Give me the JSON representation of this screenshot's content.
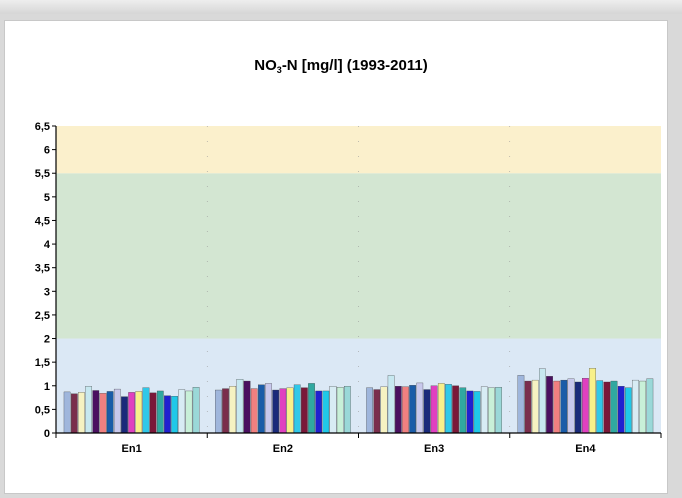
{
  "chart_data": {
    "type": "bar",
    "title_main": "NO",
    "title_sub": "3",
    "title_rest": "-N [mg/l] (1993-2011)",
    "categories": [
      "En1",
      "En2",
      "En3",
      "En4"
    ],
    "ylim": [
      0,
      6.5
    ],
    "yticks": [
      "0",
      "0,5",
      "1",
      "1,5",
      "2",
      "2,5",
      "3",
      "3,5",
      "4",
      "4,5",
      "5",
      "5,5",
      "6",
      "6,5"
    ],
    "bands": [
      {
        "from": 0,
        "to": 2,
        "color": "#dbe8f5"
      },
      {
        "from": 2,
        "to": 5.5,
        "color": "#d3e6d2"
      },
      {
        "from": 5.5,
        "to": 6.5,
        "color": "#fbf0cc"
      }
    ],
    "series_colors": [
      "#9fb6dc",
      "#7a2e4c",
      "#f6f2c2",
      "#c7e8f0",
      "#4a1060",
      "#f08080",
      "#1a5ca8",
      "#c8c8ec",
      "#1a2a7a",
      "#e040c0",
      "#f8f08a",
      "#30c8e8",
      "#7a1838",
      "#30a8a0",
      "#2020d0",
      "#20c8e8",
      "#d8ecf4",
      "#c8f0d8",
      "#9ad8d8"
    ],
    "values": {
      "En1": [
        0.87,
        0.83,
        0.86,
        0.99,
        0.9,
        0.84,
        0.88,
        0.93,
        0.77,
        0.86,
        0.88,
        0.96,
        0.85,
        0.89,
        0.79,
        0.78,
        0.92,
        0.89,
        0.97
      ],
      "En2": [
        0.91,
        0.94,
        0.99,
        1.14,
        1.1,
        0.94,
        1.02,
        1.05,
        0.91,
        0.94,
        0.96,
        1.02,
        0.96,
        1.05,
        0.89,
        0.89,
        0.99,
        0.97,
        0.99
      ],
      "En3": [
        0.96,
        0.92,
        0.98,
        1.22,
        0.99,
        0.98,
        1.01,
        1.06,
        0.92,
        1.0,
        1.05,
        1.03,
        1.0,
        0.96,
        0.89,
        0.88,
        0.98,
        0.96,
        0.97
      ],
      "En4": [
        1.22,
        1.1,
        1.12,
        1.36,
        1.2,
        1.1,
        1.12,
        1.15,
        1.08,
        1.16,
        1.37,
        1.11,
        1.08,
        1.1,
        0.99,
        0.96,
        1.12,
        1.1,
        1.15
      ]
    }
  }
}
